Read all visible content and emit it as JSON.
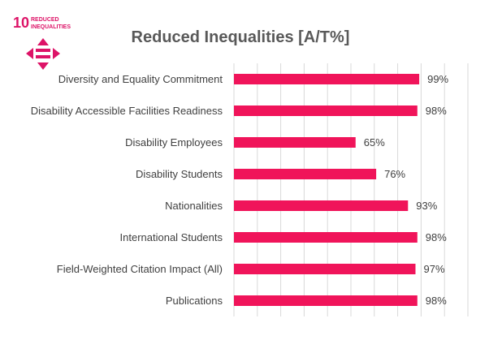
{
  "logo": {
    "goal_number": "10",
    "line1": "REDUCED",
    "line2": "INEQUALITIES",
    "color": "#dd1367"
  },
  "chart_data": {
    "type": "bar",
    "orientation": "horizontal",
    "title": "Reduced Inequalities [A/T%]",
    "categories": [
      "Diversity and Equality Commitment",
      "Disability Accessible Facilities Readiness",
      "Disability Employees",
      "Disability Students",
      "Nationalities",
      "International Students",
      "Field-Weighted Citation Impact (All)",
      "Publications"
    ],
    "values": [
      99,
      98,
      65,
      76,
      93,
      98,
      97,
      98
    ],
    "value_labels": [
      "99%",
      "98%",
      "65%",
      "76%",
      "93%",
      "98%",
      "97%",
      "98%"
    ],
    "xlim": [
      0,
      125
    ],
    "grid": true,
    "bar_color": "#f0145a",
    "grid_color": "#d9d9d9"
  }
}
